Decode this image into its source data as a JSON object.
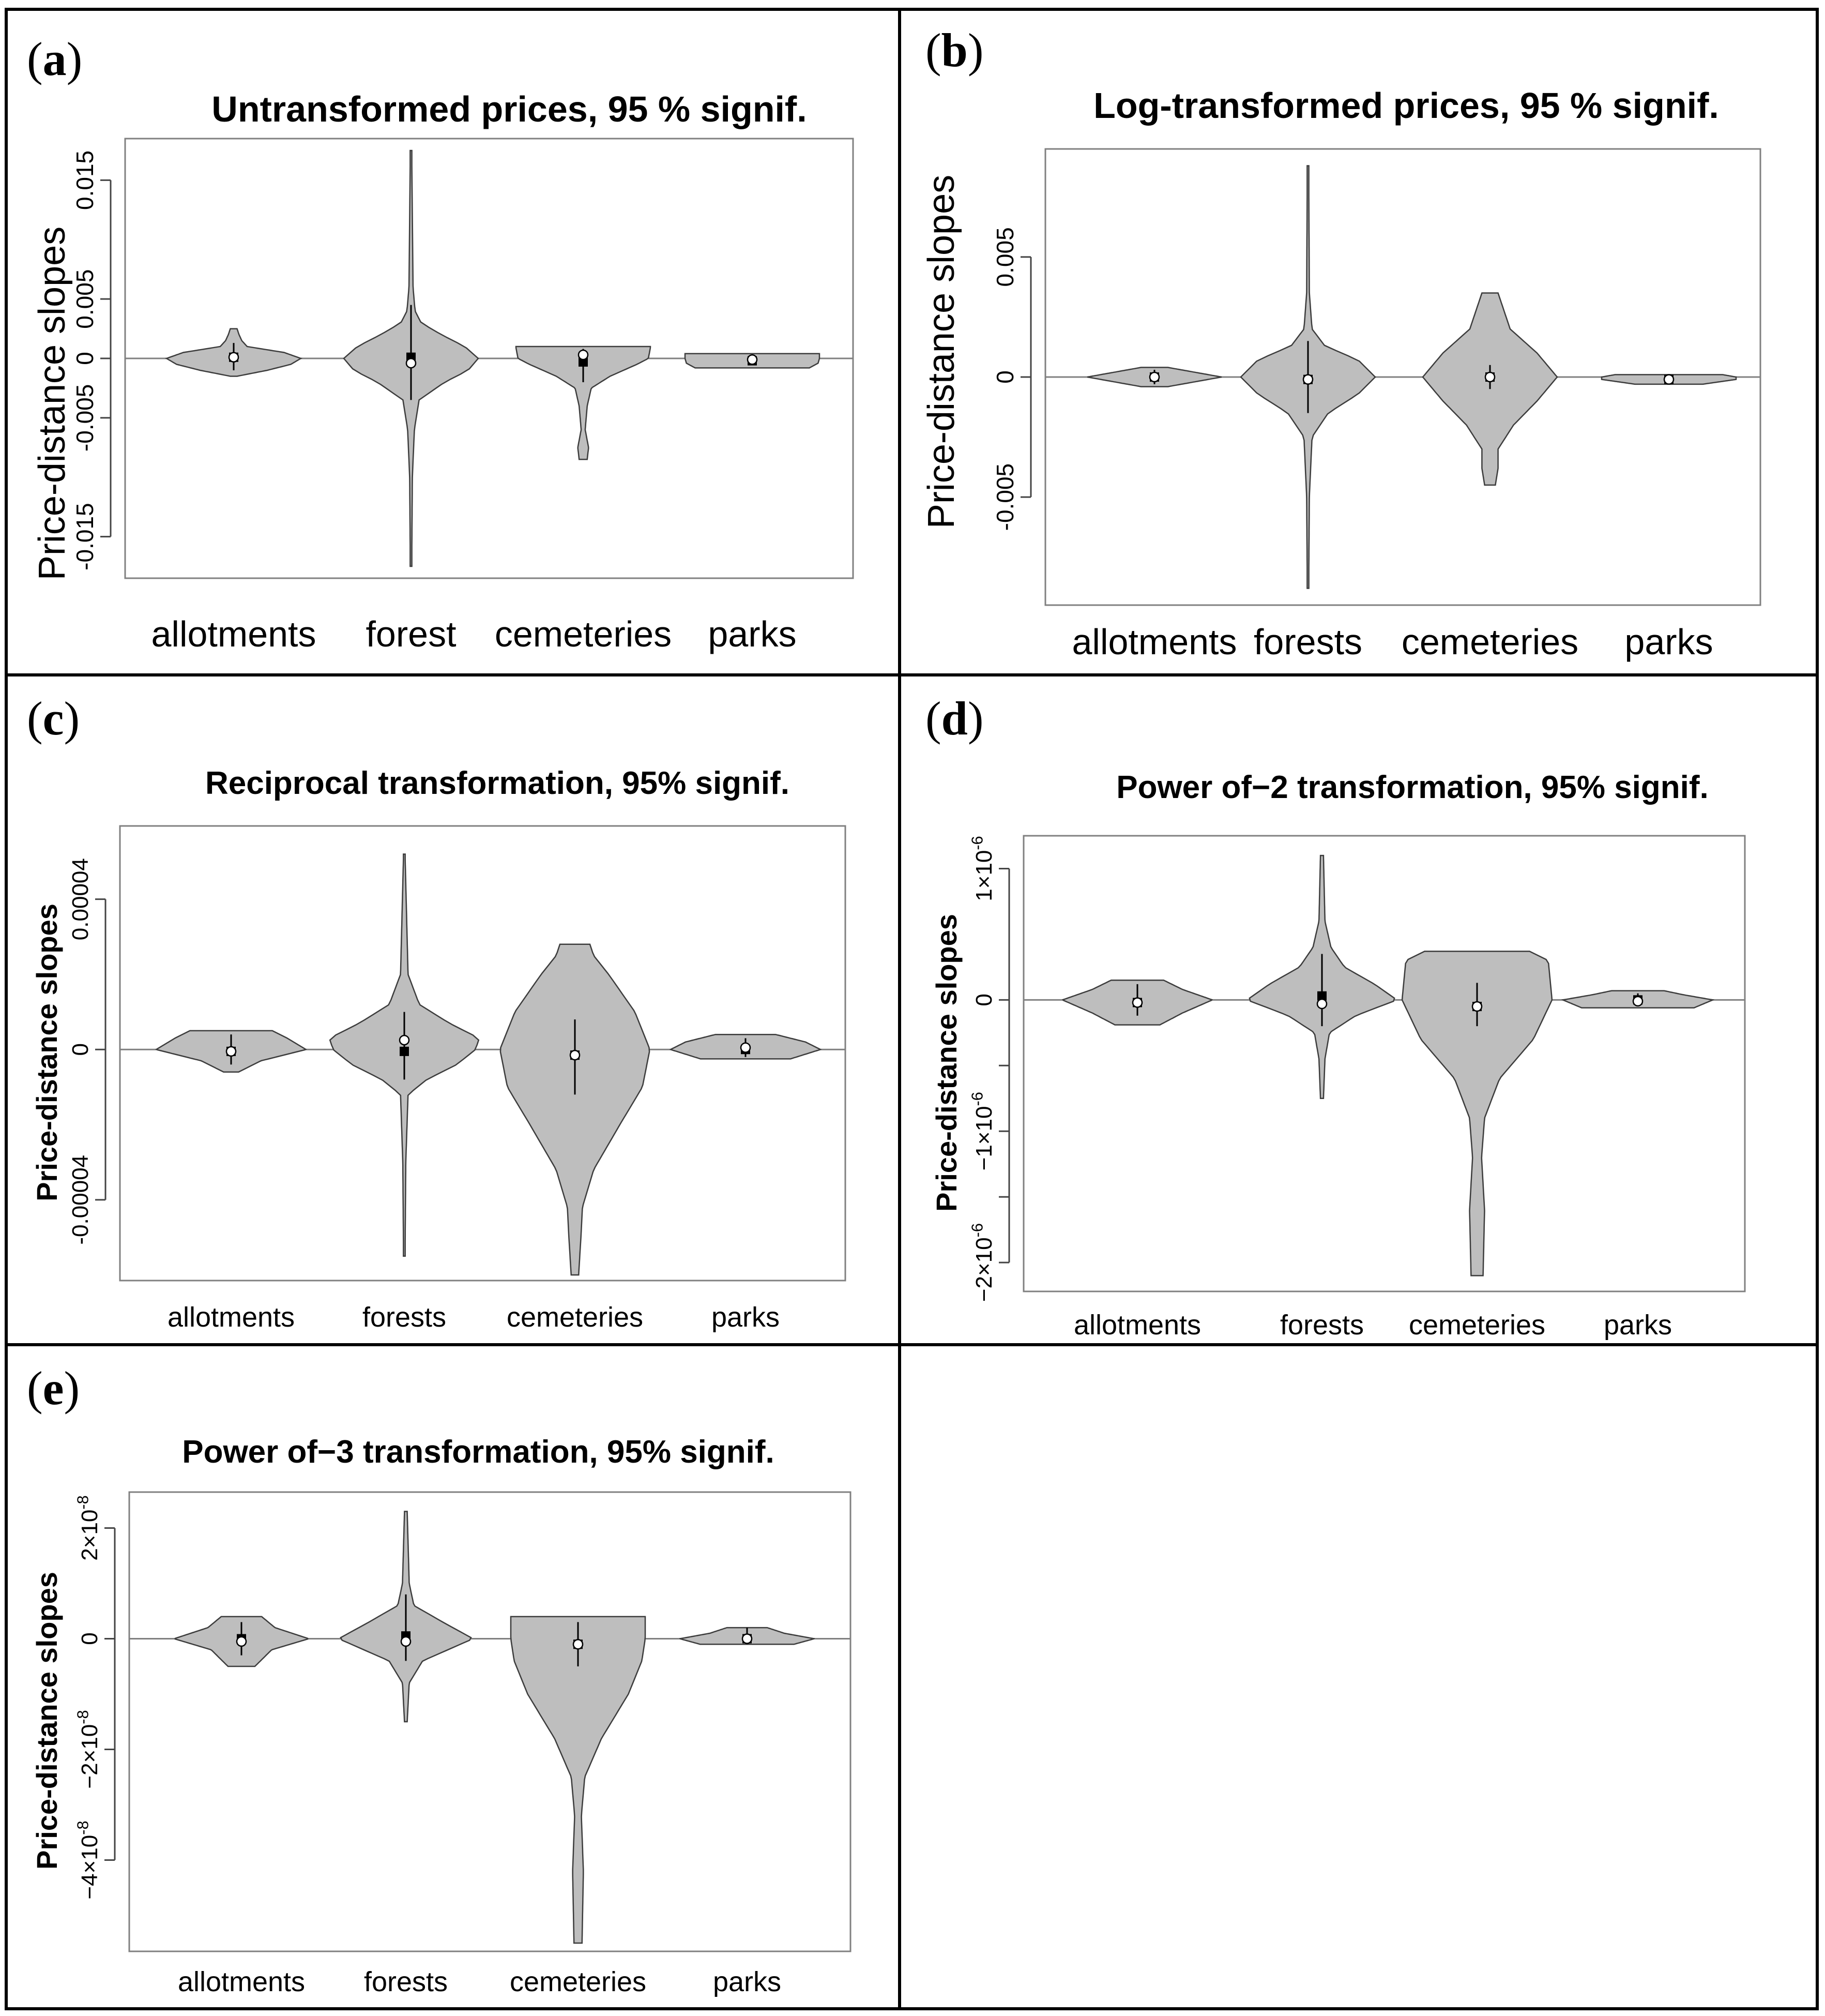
{
  "figure": {
    "background": "#ffffff",
    "violin_fill": "#bebebe",
    "frame_color": "#000000",
    "axis_color": "#808080"
  },
  "chart_data": [
    {
      "panel": "(a)",
      "type": "violin",
      "title": "Untransformed prices, 95 % signif.",
      "ylabel": "Price-distance slopes",
      "ylim": [
        -0.0185,
        0.0185
      ],
      "yticks": [
        {
          "value": -0.015,
          "label": "-0.015"
        },
        {
          "value": -0.005,
          "label": "-0.005"
        },
        {
          "value": 0,
          "label": "0"
        },
        {
          "value": 0.005,
          "label": "0.005"
        },
        {
          "value": 0.015,
          "label": "0.015"
        }
      ],
      "categories": [
        "allotments",
        "forest",
        "cemeteries",
        "parks"
      ],
      "violins": [
        {
          "name": "allotments",
          "min": -0.0015,
          "max": 0.0025,
          "profile": [
            [
              -0.0015,
              0.05
            ],
            [
              -0.001,
              0.5
            ],
            [
              -0.0005,
              0.85
            ],
            [
              0,
              1.0
            ],
            [
              0.0005,
              0.75
            ],
            [
              0.001,
              0.2
            ],
            [
              0.0015,
              0.12
            ],
            [
              0.002,
              0.08
            ],
            [
              0.0025,
              0.05
            ]
          ],
          "whisker": [
            -0.001,
            0.0013
          ],
          "mean": 0.0001,
          "median": 0.0001
        },
        {
          "name": "forest",
          "min": -0.0175,
          "max": 0.0175,
          "profile": [
            [
              -0.0175,
              0.01
            ],
            [
              -0.01,
              0.02
            ],
            [
              -0.006,
              0.05
            ],
            [
              -0.0035,
              0.12
            ],
            [
              -0.002,
              0.5
            ],
            [
              -0.001,
              0.85
            ],
            [
              0,
              1.0
            ],
            [
              0.001,
              0.8
            ],
            [
              0.002,
              0.45
            ],
            [
              0.003,
              0.15
            ],
            [
              0.004,
              0.06
            ],
            [
              0.006,
              0.03
            ],
            [
              0.0175,
              0.01
            ]
          ],
          "whisker": [
            -0.0035,
            0.0045
          ],
          "mean": 0.0001,
          "median": -0.0004
        },
        {
          "name": "cemeteries",
          "min": -0.0085,
          "max": 0.001,
          "profile": [
            [
              -0.0085,
              0.06
            ],
            [
              -0.0075,
              0.08
            ],
            [
              -0.006,
              0.03
            ],
            [
              -0.004,
              0.06
            ],
            [
              -0.0025,
              0.12
            ],
            [
              -0.0015,
              0.4
            ],
            [
              -0.0005,
              0.8
            ],
            [
              0,
              0.97
            ],
            [
              0.0009,
              1.0
            ],
            [
              0.001,
              1.0
            ]
          ],
          "whisker": [
            -0.002,
            0.0008
          ],
          "mean": -0.0003,
          "median": 0.0003
        },
        {
          "name": "parks",
          "min": -0.0008,
          "max": 0.0004,
          "profile": [
            [
              -0.0008,
              0.85
            ],
            [
              -0.0004,
              0.98
            ],
            [
              0,
              1.0
            ],
            [
              0.0003,
              1.0
            ],
            [
              0.0004,
              1.0
            ]
          ],
          "whisker": [
            -0.0005,
            0.0003
          ],
          "mean": -0.0002,
          "median": -0.0001
        }
      ]
    },
    {
      "panel": "(b)",
      "type": "violin",
      "title": "Log-transformed prices, 95 % signif.",
      "ylabel": "Price-distance slopes",
      "ylim": [
        -0.0095,
        0.0095
      ],
      "yticks": [
        {
          "value": -0.005,
          "label": "-0.005"
        },
        {
          "value": 0,
          "label": "0"
        },
        {
          "value": 0.005,
          "label": "0.005"
        }
      ],
      "categories": [
        "allotments",
        "forests",
        "cemeteries",
        "parks"
      ],
      "violins": [
        {
          "name": "allotments",
          "min": -0.0004,
          "max": 0.0004,
          "profile": [
            [
              -0.0004,
              0.2
            ],
            [
              -0.0002,
              0.6
            ],
            [
              0,
              1.0
            ],
            [
              0.0002,
              0.6
            ],
            [
              0.0004,
              0.2
            ]
          ],
          "whisker": [
            -0.0003,
            0.0003
          ],
          "mean": 0.0,
          "median": 0.0
        },
        {
          "name": "forests",
          "min": -0.0088,
          "max": 0.0088,
          "profile": [
            [
              -0.0088,
              0.01
            ],
            [
              -0.005,
              0.02
            ],
            [
              -0.0025,
              0.06
            ],
            [
              -0.0015,
              0.3
            ],
            [
              -0.0007,
              0.75
            ],
            [
              0,
              1.0
            ],
            [
              0.0007,
              0.75
            ],
            [
              0.0013,
              0.25
            ],
            [
              0.002,
              0.06
            ],
            [
              0.0035,
              0.02
            ],
            [
              0.0088,
              0.01
            ]
          ],
          "whisker": [
            -0.0015,
            0.0015
          ],
          "mean": -0.0001,
          "median": -0.0001
        },
        {
          "name": "cemeteries",
          "min": -0.0045,
          "max": 0.0035,
          "profile": [
            [
              -0.0045,
              0.08
            ],
            [
              -0.0038,
              0.12
            ],
            [
              -0.003,
              0.12
            ],
            [
              -0.002,
              0.35
            ],
            [
              -0.001,
              0.7
            ],
            [
              0,
              1.0
            ],
            [
              0.001,
              0.7
            ],
            [
              0.002,
              0.3
            ],
            [
              0.0035,
              0.12
            ]
          ],
          "whisker": [
            -0.0005,
            0.0005
          ],
          "mean": 0.0,
          "median": 0.0
        },
        {
          "name": "parks",
          "min": -0.0003,
          "max": 0.0001,
          "profile": [
            [
              -0.0003,
              0.5
            ],
            [
              -0.0001,
              1.0
            ],
            [
              0,
              1.0
            ],
            [
              0.0001,
              0.8
            ]
          ],
          "whisker": [
            -0.0002,
            0.0001
          ],
          "mean": -0.0001,
          "median": -0.0001
        }
      ]
    },
    {
      "panel": "(c)",
      "type": "violin",
      "title": "Reciprocal transformation, 95% signif.",
      "ylabel": "Price-distance slopes",
      "ylim": [
        -6.15e-05,
        5.95e-05
      ],
      "yticks": [
        {
          "value": -4e-05,
          "label": "-0.00004"
        },
        {
          "value": 0,
          "label": "0"
        },
        {
          "value": 4e-05,
          "label": "0.00004"
        }
      ],
      "categories": [
        "allotments",
        "forests",
        "cemeteries",
        "parks"
      ],
      "violins": [
        {
          "name": "allotments",
          "min": -6e-06,
          "max": 5e-06,
          "profile": [
            [
              -6e-06,
              0.1
            ],
            [
              -3e-06,
              0.4
            ],
            [
              0,
              1.0
            ],
            [
              3e-06,
              0.75
            ],
            [
              5e-06,
              0.55
            ]
          ],
          "whisker": [
            -4e-06,
            4e-06
          ],
          "mean": -5e-07,
          "median": -5e-07
        },
        {
          "name": "forests",
          "min": -5.5e-05,
          "max": 5.2e-05,
          "profile": [
            [
              -5.5e-05,
              0.01
            ],
            [
              -3e-05,
              0.02
            ],
            [
              -1.2e-05,
              0.05
            ],
            [
              -8e-06,
              0.3
            ],
            [
              -4e-06,
              0.7
            ],
            [
              0,
              0.95
            ],
            [
              3e-06,
              1.0
            ],
            [
              7e-06,
              0.6
            ],
            [
              1.2e-05,
              0.2
            ],
            [
              2e-05,
              0.05
            ],
            [
              5.2e-05,
              0.01
            ]
          ],
          "whisker": [
            -8e-06,
            1e-05
          ],
          "mean": -5e-07,
          "median": 2.5e-06
        },
        {
          "name": "cemeteries",
          "min": -6e-05,
          "max": 2.8e-05,
          "profile": [
            [
              -6e-05,
              0.05
            ],
            [
              -5e-05,
              0.08
            ],
            [
              -4.2e-05,
              0.1
            ],
            [
              -3.2e-05,
              0.25
            ],
            [
              -2e-05,
              0.6
            ],
            [
              -1e-05,
              0.9
            ],
            [
              0,
              1.0
            ],
            [
              1e-05,
              0.8
            ],
            [
              2e-05,
              0.45
            ],
            [
              2.5e-05,
              0.25
            ],
            [
              2.8e-05,
              0.2
            ]
          ],
          "whisker": [
            -1.2e-05,
            8e-06
          ],
          "mean": -1.5e-06,
          "median": -1.5e-06
        },
        {
          "name": "parks",
          "min": -2.5e-06,
          "max": 4e-06,
          "profile": [
            [
              -2.5e-06,
              0.6
            ],
            [
              0,
              1.0
            ],
            [
              2e-06,
              0.8
            ],
            [
              4e-06,
              0.4
            ]
          ],
          "whisker": [
            -2e-06,
            3e-06
          ],
          "mean": 0.0,
          "median": 5e-07
        }
      ]
    },
    {
      "panel": "(d)",
      "type": "violin",
      "title": "Power of−2 transformation, 95% signif.",
      "ylabel": "Price-distance slopes",
      "ylim": [
        -2.22e-06,
        1.25e-06
      ],
      "yticks": [
        {
          "value": -2e-06,
          "label": "−2×10",
          "exp": "-6"
        },
        {
          "value": -1.5e-06,
          "label": "−",
          "exp": ""
        },
        {
          "value": -1e-06,
          "label": "−1×10",
          "exp": "-6"
        },
        {
          "value": -5e-07,
          "label": "−",
          "exp": ""
        },
        {
          "value": 0,
          "label": "0",
          "exp": ""
        },
        {
          "value": 1e-06,
          "label": "1×10",
          "exp": "-6"
        }
      ],
      "categories": [
        "allotments",
        "forests",
        "cemeteries",
        "parks"
      ],
      "violins": [
        {
          "name": "allotments",
          "min": -1.9e-07,
          "max": 1.5e-07,
          "profile": [
            [
              -1.9e-07,
              0.3
            ],
            [
              -1e-07,
              0.6
            ],
            [
              0,
              1.0
            ],
            [
              8e-08,
              0.6
            ],
            [
              1.5e-07,
              0.35
            ]
          ],
          "whisker": [
            -1.2e-07,
            1.2e-07
          ],
          "mean": -2e-08,
          "median": -2e-08
        },
        {
          "name": "forests",
          "min": -7.5e-07,
          "max": 1.1e-06,
          "profile": [
            [
              -7.5e-07,
              0.02
            ],
            [
              -4.5e-07,
              0.04
            ],
            [
              -2.5e-07,
              0.1
            ],
            [
              -1.2e-07,
              0.45
            ],
            [
              0,
              1.0
            ],
            [
              1.2e-07,
              0.7
            ],
            [
              2.5e-07,
              0.3
            ],
            [
              4e-07,
              0.12
            ],
            [
              6e-07,
              0.04
            ],
            [
              1.1e-06,
              0.02
            ]
          ],
          "whisker": [
            -2e-07,
            3.5e-07
          ],
          "mean": 3e-08,
          "median": -3e-08
        },
        {
          "name": "cemeteries",
          "min": -2.1e-06,
          "max": 3.7e-07,
          "profile": [
            [
              -2.1e-06,
              0.08
            ],
            [
              -1.6e-06,
              0.1
            ],
            [
              -1.2e-06,
              0.06
            ],
            [
              -9e-07,
              0.1
            ],
            [
              -6e-07,
              0.3
            ],
            [
              -3e-07,
              0.75
            ],
            [
              0,
              1.0
            ],
            [
              3e-07,
              0.95
            ],
            [
              3.7e-07,
              0.7
            ]
          ],
          "whisker": [
            -2e-07,
            1.3e-07
          ],
          "mean": -5e-08,
          "median": -5e-08
        },
        {
          "name": "parks",
          "min": -6e-08,
          "max": 7e-08,
          "profile": [
            [
              -6e-08,
              0.75
            ],
            [
              0,
              1.0
            ],
            [
              4e-08,
              0.6
            ],
            [
              7e-08,
              0.35
            ]
          ],
          "whisker": [
            -4e-08,
            5e-08
          ],
          "mean": 0.0,
          "median": -1e-08
        }
      ]
    },
    {
      "panel": "(e)",
      "type": "violin",
      "title": "Power of−3 transformation, 95% signif.",
      "ylabel": "Price-distance slopes",
      "ylim": [
        -5.65e-08,
        2.65e-08
      ],
      "yticks": [
        {
          "value": -4e-08,
          "label": "−4×10",
          "exp": "-8"
        },
        {
          "value": -2e-08,
          "label": "−2×10",
          "exp": "-8"
        },
        {
          "value": 0,
          "label": "0",
          "exp": ""
        },
        {
          "value": 2e-08,
          "label": "2×10",
          "exp": "-8"
        }
      ],
      "categories": [
        "allotments",
        "forests",
        "cemeteries",
        "parks"
      ],
      "violins": [
        {
          "name": "allotments",
          "min": -5e-09,
          "max": 4e-09,
          "profile": [
            [
              -5e-09,
              0.2
            ],
            [
              -2e-09,
              0.45
            ],
            [
              0,
              1.0
            ],
            [
              2e-09,
              0.5
            ],
            [
              4e-09,
              0.3
            ]
          ],
          "whisker": [
            -3e-09,
            3e-09
          ],
          "mean": 0.0,
          "median": -5e-10
        },
        {
          "name": "forests",
          "min": -1.5e-08,
          "max": 2.3e-08,
          "profile": [
            [
              -1.5e-08,
              0.02
            ],
            [
              -8e-09,
              0.05
            ],
            [
              -4e-09,
              0.25
            ],
            [
              0,
              1.0
            ],
            [
              3e-09,
              0.55
            ],
            [
              6e-09,
              0.12
            ],
            [
              1e-08,
              0.05
            ],
            [
              2.3e-08,
              0.02
            ]
          ],
          "whisker": [
            -4e-09,
            8e-09
          ],
          "mean": 5e-10,
          "median": -5e-10
        },
        {
          "name": "cemeteries",
          "min": -5.5e-08,
          "max": 4e-09,
          "profile": [
            [
              -5.5e-08,
              0.06
            ],
            [
              -4.2e-08,
              0.08
            ],
            [
              -3.2e-08,
              0.05
            ],
            [
              -2.5e-08,
              0.1
            ],
            [
              -1.8e-08,
              0.35
            ],
            [
              -1e-08,
              0.75
            ],
            [
              -4e-09,
              0.95
            ],
            [
              0,
              1.0
            ],
            [
              4e-09,
              1.0
            ]
          ],
          "whisker": [
            -5e-09,
            3e-09
          ],
          "mean": -1e-09,
          "median": -1e-09
        },
        {
          "name": "parks",
          "min": -1e-09,
          "max": 2e-09,
          "profile": [
            [
              -1e-09,
              0.7
            ],
            [
              0,
              1.0
            ],
            [
              1e-09,
              0.55
            ],
            [
              2e-09,
              0.3
            ]
          ],
          "whisker": [
            -1e-09,
            2e-09
          ],
          "mean": 0.0,
          "median": 0.0
        }
      ]
    }
  ]
}
